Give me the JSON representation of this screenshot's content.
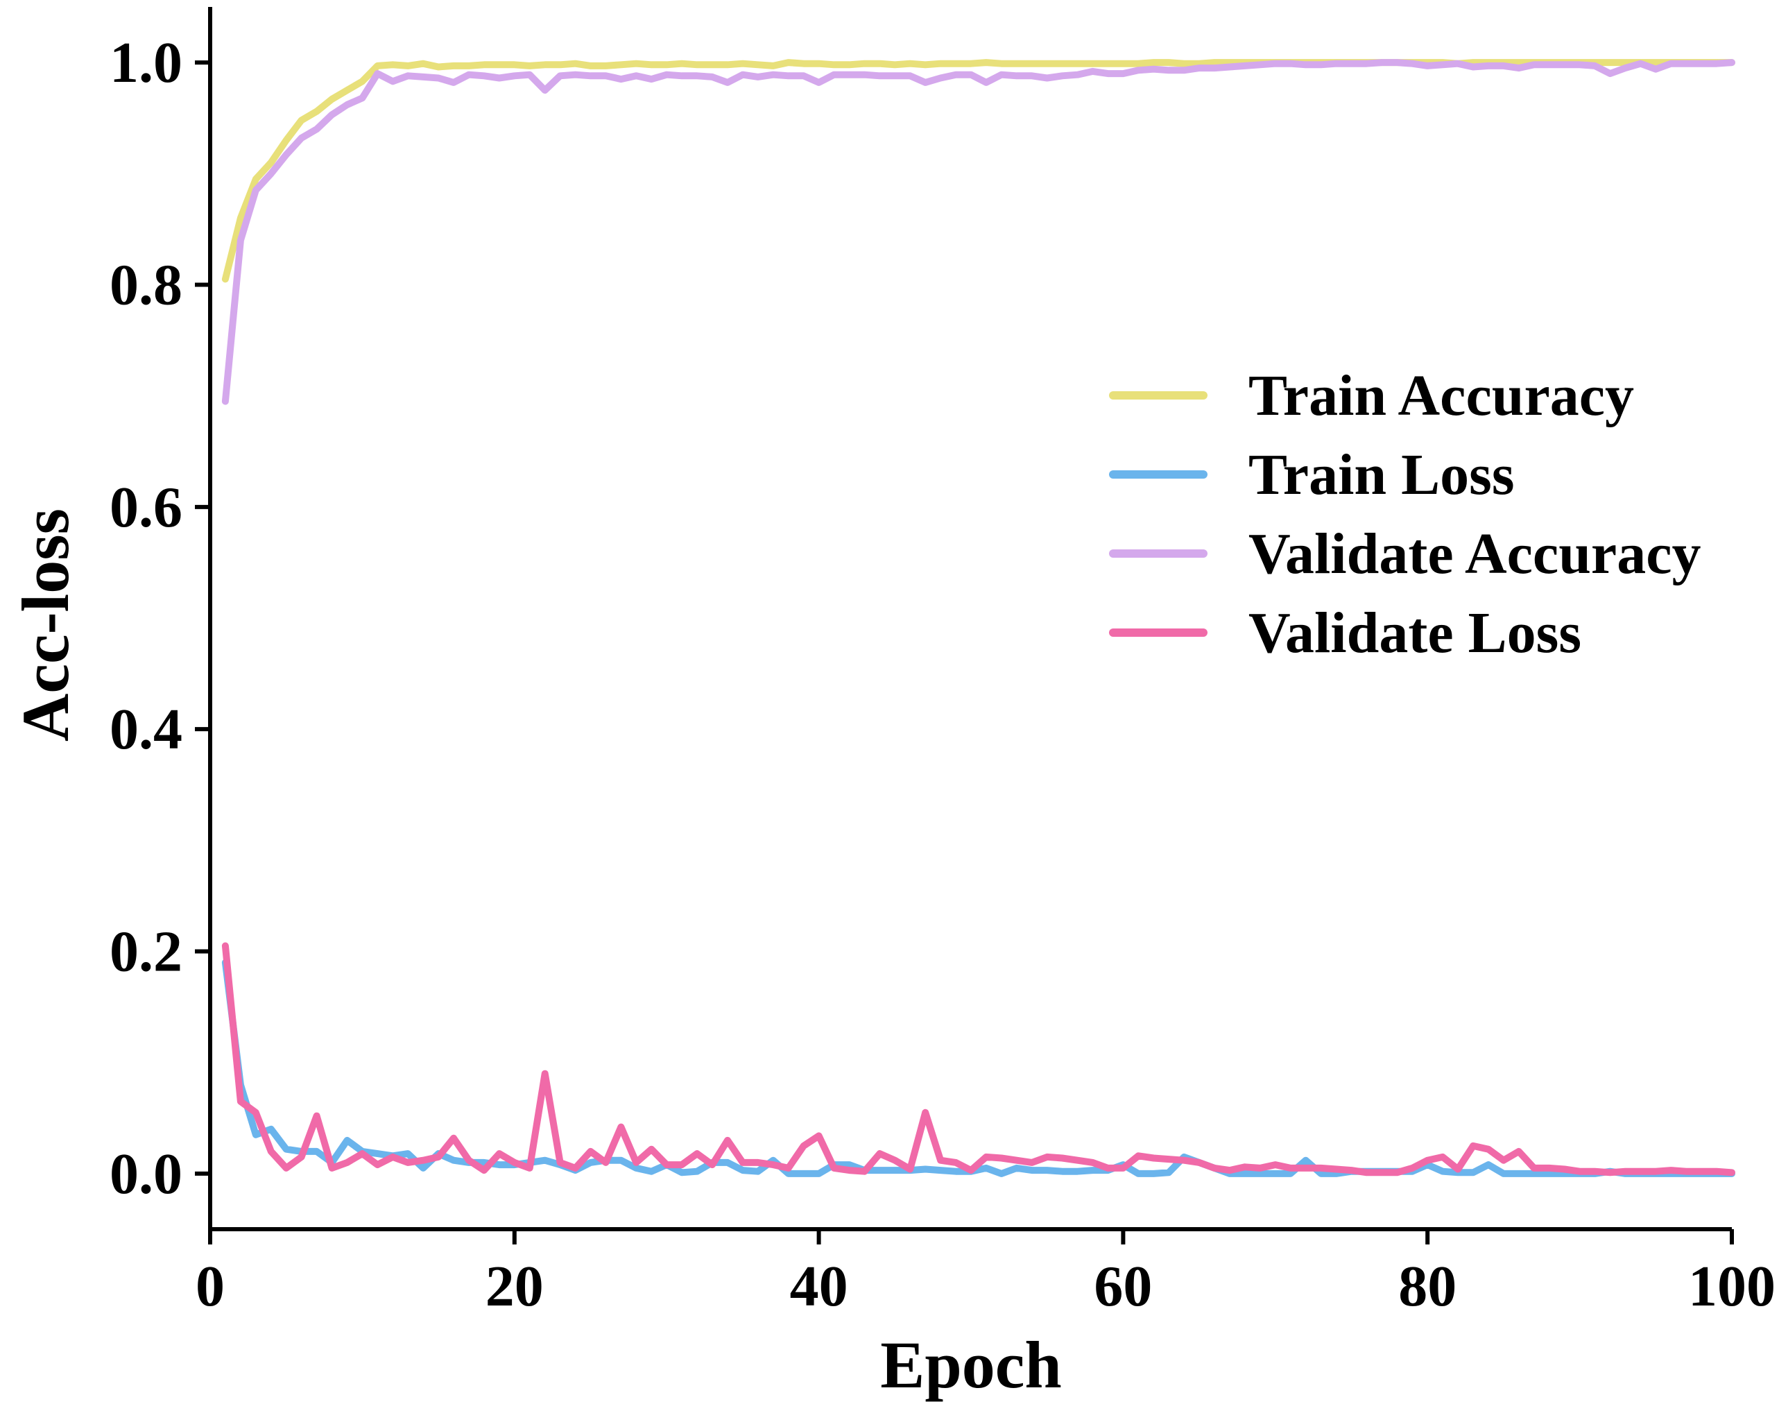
{
  "chart_data": {
    "type": "line",
    "title": "",
    "xlabel": "Epoch",
    "ylabel": "Acc-loss",
    "xlim": [
      0,
      100
    ],
    "ylim": [
      -0.05,
      1.05
    ],
    "xticks": [
      0,
      20,
      40,
      60,
      80,
      100
    ],
    "xtick_labels": [
      "0",
      "20",
      "40",
      "60",
      "80",
      "100"
    ],
    "yticks": [
      0.0,
      0.2,
      0.4,
      0.6,
      0.8,
      1.0
    ],
    "ytick_labels": [
      "0.0",
      "0.2",
      "0.4",
      "0.6",
      "0.8",
      "1.0"
    ],
    "grid": false,
    "legend_position": "center-right",
    "x": [
      1,
      2,
      3,
      4,
      5,
      6,
      7,
      8,
      9,
      10,
      11,
      12,
      13,
      14,
      15,
      16,
      17,
      18,
      19,
      20,
      21,
      22,
      23,
      24,
      25,
      26,
      27,
      28,
      29,
      30,
      31,
      32,
      33,
      34,
      35,
      36,
      37,
      38,
      39,
      40,
      41,
      42,
      43,
      44,
      45,
      46,
      47,
      48,
      49,
      50,
      51,
      52,
      53,
      54,
      55,
      56,
      57,
      58,
      59,
      60,
      61,
      62,
      63,
      64,
      65,
      66,
      67,
      68,
      69,
      70,
      71,
      72,
      73,
      74,
      75,
      76,
      77,
      78,
      79,
      80,
      81,
      82,
      83,
      84,
      85,
      86,
      87,
      88,
      89,
      90,
      91,
      92,
      93,
      94,
      95,
      96,
      97,
      98,
      99,
      100
    ],
    "series": [
      {
        "name": "Train Accuracy",
        "color": "#e8e07a",
        "values": [
          0.805,
          0.86,
          0.895,
          0.91,
          0.93,
          0.948,
          0.956,
          0.967,
          0.975,
          0.983,
          0.997,
          0.998,
          0.997,
          0.999,
          0.996,
          0.997,
          0.997,
          0.998,
          0.998,
          0.998,
          0.997,
          0.998,
          0.998,
          0.999,
          0.997,
          0.997,
          0.998,
          0.999,
          0.998,
          0.998,
          0.999,
          0.998,
          0.998,
          0.998,
          0.999,
          0.998,
          0.997,
          1.0,
          0.999,
          0.999,
          0.998,
          0.998,
          0.999,
          0.999,
          0.998,
          0.999,
          0.998,
          0.999,
          0.999,
          0.999,
          1.0,
          0.999,
          0.999,
          0.999,
          0.999,
          0.999,
          0.999,
          0.999,
          0.999,
          0.999,
          0.999,
          1.0,
          1.0,
          0.999,
          0.999,
          1.0,
          1.0,
          1.0,
          1.0,
          1.0,
          1.0,
          1.0,
          1.0,
          1.0,
          1.0,
          1.0,
          1.0,
          1.0,
          1.0,
          1.0,
          1.0,
          0.999,
          1.0,
          1.0,
          1.0,
          1.0,
          1.0,
          1.0,
          1.0,
          1.0,
          1.0,
          1.0,
          1.0,
          1.0,
          1.0,
          1.0,
          1.0,
          1.0,
          1.0,
          1.0
        ]
      },
      {
        "name": "Train Loss",
        "color": "#6ab4ec",
        "values": [
          0.19,
          0.08,
          0.035,
          0.04,
          0.022,
          0.02,
          0.02,
          0.01,
          0.03,
          0.02,
          0.018,
          0.016,
          0.018,
          0.005,
          0.018,
          0.012,
          0.01,
          0.01,
          0.008,
          0.008,
          0.01,
          0.012,
          0.008,
          0.003,
          0.01,
          0.012,
          0.012,
          0.005,
          0.002,
          0.008,
          0.001,
          0.002,
          0.01,
          0.01,
          0.003,
          0.002,
          0.012,
          0.0,
          0.0,
          0.0,
          0.008,
          0.008,
          0.003,
          0.003,
          0.003,
          0.003,
          0.004,
          0.003,
          0.002,
          0.002,
          0.005,
          0.0,
          0.005,
          0.003,
          0.003,
          0.002,
          0.002,
          0.003,
          0.003,
          0.008,
          0.0,
          0.0,
          0.001,
          0.015,
          0.01,
          0.005,
          0.0,
          0.0,
          0.0,
          0.0,
          0.0,
          0.012,
          0.0,
          0.0,
          0.002,
          0.002,
          0.002,
          0.002,
          0.002,
          0.008,
          0.002,
          0.001,
          0.001,
          0.008,
          0.0,
          0.0,
          0.0,
          0.0,
          0.0,
          0.0,
          0.0,
          0.002,
          0.0,
          0.0,
          0.0,
          0.0,
          0.0,
          0.0,
          0.0,
          0.0
        ]
      },
      {
        "name": "Validate Accuracy",
        "color": "#d4a8ec",
        "values": [
          0.695,
          0.84,
          0.885,
          0.9,
          0.917,
          0.932,
          0.94,
          0.953,
          0.962,
          0.968,
          0.99,
          0.983,
          0.988,
          0.987,
          0.986,
          0.982,
          0.989,
          0.988,
          0.986,
          0.988,
          0.989,
          0.975,
          0.988,
          0.989,
          0.988,
          0.988,
          0.985,
          0.988,
          0.985,
          0.989,
          0.988,
          0.988,
          0.987,
          0.982,
          0.989,
          0.987,
          0.989,
          0.988,
          0.988,
          0.982,
          0.989,
          0.989,
          0.989,
          0.988,
          0.988,
          0.988,
          0.982,
          0.986,
          0.989,
          0.989,
          0.982,
          0.989,
          0.988,
          0.988,
          0.986,
          0.988,
          0.989,
          0.992,
          0.99,
          0.99,
          0.993,
          0.994,
          0.993,
          0.993,
          0.995,
          0.995,
          0.996,
          0.997,
          0.998,
          0.999,
          0.999,
          0.998,
          0.998,
          0.999,
          0.999,
          0.999,
          1.0,
          1.0,
          0.999,
          0.997,
          0.998,
          0.999,
          0.996,
          0.997,
          0.997,
          0.995,
          0.998,
          0.998,
          0.998,
          0.998,
          0.997,
          0.99,
          0.995,
          0.999,
          0.994,
          0.999,
          0.999,
          0.999,
          0.999,
          1.0
        ]
      },
      {
        "name": "Validate Loss",
        "color": "#f06aa8",
        "values": [
          0.205,
          0.065,
          0.055,
          0.02,
          0.005,
          0.015,
          0.052,
          0.005,
          0.01,
          0.018,
          0.008,
          0.015,
          0.01,
          0.012,
          0.015,
          0.032,
          0.012,
          0.003,
          0.018,
          0.01,
          0.005,
          0.09,
          0.01,
          0.005,
          0.02,
          0.01,
          0.042,
          0.01,
          0.022,
          0.008,
          0.008,
          0.018,
          0.008,
          0.03,
          0.01,
          0.01,
          0.008,
          0.005,
          0.025,
          0.034,
          0.005,
          0.003,
          0.002,
          0.018,
          0.012,
          0.004,
          0.055,
          0.012,
          0.01,
          0.003,
          0.015,
          0.014,
          0.012,
          0.01,
          0.015,
          0.014,
          0.012,
          0.01,
          0.005,
          0.005,
          0.016,
          0.014,
          0.013,
          0.012,
          0.01,
          0.005,
          0.003,
          0.006,
          0.005,
          0.008,
          0.005,
          0.005,
          0.005,
          0.004,
          0.003,
          0.001,
          0.001,
          0.001,
          0.005,
          0.012,
          0.015,
          0.004,
          0.025,
          0.022,
          0.012,
          0.02,
          0.005,
          0.005,
          0.004,
          0.002,
          0.002,
          0.001,
          0.002,
          0.002,
          0.002,
          0.003,
          0.002,
          0.002,
          0.002,
          0.001
        ]
      }
    ]
  }
}
